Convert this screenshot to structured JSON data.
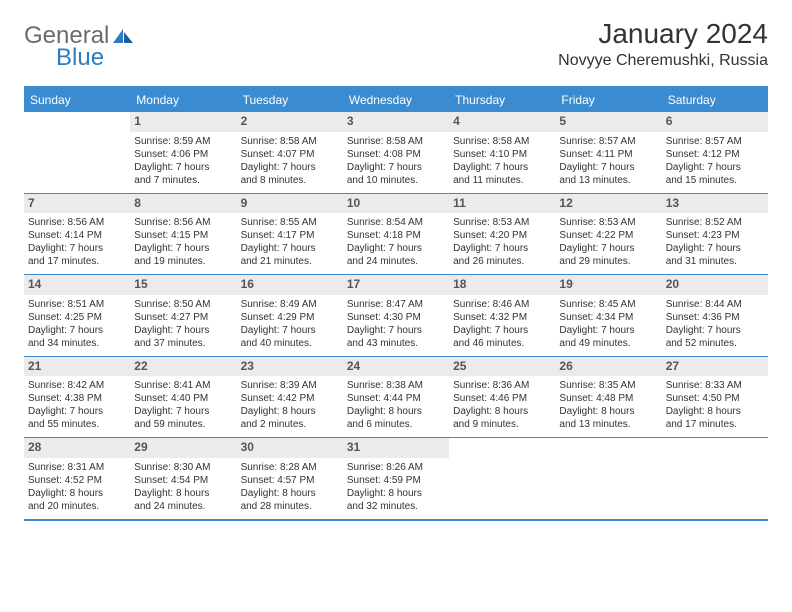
{
  "logo": {
    "general": "General",
    "blue": "Blue"
  },
  "title": "January 2024",
  "subtitle": "Novyye Cheremushki, Russia",
  "colors": {
    "header_bg": "#3b8bd0",
    "header_fg": "#ffffff",
    "daynum_bg": "#ebebeb",
    "rule": "#3b8bd0"
  },
  "dayheads": [
    "Sunday",
    "Monday",
    "Tuesday",
    "Wednesday",
    "Thursday",
    "Friday",
    "Saturday"
  ],
  "weeks": [
    [
      {
        "n": "",
        "sr": "",
        "ss": "",
        "dl1": "",
        "dl2": "",
        "empty": true
      },
      {
        "n": "1",
        "sr": "Sunrise: 8:59 AM",
        "ss": "Sunset: 4:06 PM",
        "dl1": "Daylight: 7 hours",
        "dl2": "and 7 minutes."
      },
      {
        "n": "2",
        "sr": "Sunrise: 8:58 AM",
        "ss": "Sunset: 4:07 PM",
        "dl1": "Daylight: 7 hours",
        "dl2": "and 8 minutes."
      },
      {
        "n": "3",
        "sr": "Sunrise: 8:58 AM",
        "ss": "Sunset: 4:08 PM",
        "dl1": "Daylight: 7 hours",
        "dl2": "and 10 minutes."
      },
      {
        "n": "4",
        "sr": "Sunrise: 8:58 AM",
        "ss": "Sunset: 4:10 PM",
        "dl1": "Daylight: 7 hours",
        "dl2": "and 11 minutes."
      },
      {
        "n": "5",
        "sr": "Sunrise: 8:57 AM",
        "ss": "Sunset: 4:11 PM",
        "dl1": "Daylight: 7 hours",
        "dl2": "and 13 minutes."
      },
      {
        "n": "6",
        "sr": "Sunrise: 8:57 AM",
        "ss": "Sunset: 4:12 PM",
        "dl1": "Daylight: 7 hours",
        "dl2": "and 15 minutes."
      }
    ],
    [
      {
        "n": "7",
        "sr": "Sunrise: 8:56 AM",
        "ss": "Sunset: 4:14 PM",
        "dl1": "Daylight: 7 hours",
        "dl2": "and 17 minutes."
      },
      {
        "n": "8",
        "sr": "Sunrise: 8:56 AM",
        "ss": "Sunset: 4:15 PM",
        "dl1": "Daylight: 7 hours",
        "dl2": "and 19 minutes."
      },
      {
        "n": "9",
        "sr": "Sunrise: 8:55 AM",
        "ss": "Sunset: 4:17 PM",
        "dl1": "Daylight: 7 hours",
        "dl2": "and 21 minutes."
      },
      {
        "n": "10",
        "sr": "Sunrise: 8:54 AM",
        "ss": "Sunset: 4:18 PM",
        "dl1": "Daylight: 7 hours",
        "dl2": "and 24 minutes."
      },
      {
        "n": "11",
        "sr": "Sunrise: 8:53 AM",
        "ss": "Sunset: 4:20 PM",
        "dl1": "Daylight: 7 hours",
        "dl2": "and 26 minutes."
      },
      {
        "n": "12",
        "sr": "Sunrise: 8:53 AM",
        "ss": "Sunset: 4:22 PM",
        "dl1": "Daylight: 7 hours",
        "dl2": "and 29 minutes."
      },
      {
        "n": "13",
        "sr": "Sunrise: 8:52 AM",
        "ss": "Sunset: 4:23 PM",
        "dl1": "Daylight: 7 hours",
        "dl2": "and 31 minutes."
      }
    ],
    [
      {
        "n": "14",
        "sr": "Sunrise: 8:51 AM",
        "ss": "Sunset: 4:25 PM",
        "dl1": "Daylight: 7 hours",
        "dl2": "and 34 minutes."
      },
      {
        "n": "15",
        "sr": "Sunrise: 8:50 AM",
        "ss": "Sunset: 4:27 PM",
        "dl1": "Daylight: 7 hours",
        "dl2": "and 37 minutes."
      },
      {
        "n": "16",
        "sr": "Sunrise: 8:49 AM",
        "ss": "Sunset: 4:29 PM",
        "dl1": "Daylight: 7 hours",
        "dl2": "and 40 minutes."
      },
      {
        "n": "17",
        "sr": "Sunrise: 8:47 AM",
        "ss": "Sunset: 4:30 PM",
        "dl1": "Daylight: 7 hours",
        "dl2": "and 43 minutes."
      },
      {
        "n": "18",
        "sr": "Sunrise: 8:46 AM",
        "ss": "Sunset: 4:32 PM",
        "dl1": "Daylight: 7 hours",
        "dl2": "and 46 minutes."
      },
      {
        "n": "19",
        "sr": "Sunrise: 8:45 AM",
        "ss": "Sunset: 4:34 PM",
        "dl1": "Daylight: 7 hours",
        "dl2": "and 49 minutes."
      },
      {
        "n": "20",
        "sr": "Sunrise: 8:44 AM",
        "ss": "Sunset: 4:36 PM",
        "dl1": "Daylight: 7 hours",
        "dl2": "and 52 minutes."
      }
    ],
    [
      {
        "n": "21",
        "sr": "Sunrise: 8:42 AM",
        "ss": "Sunset: 4:38 PM",
        "dl1": "Daylight: 7 hours",
        "dl2": "and 55 minutes."
      },
      {
        "n": "22",
        "sr": "Sunrise: 8:41 AM",
        "ss": "Sunset: 4:40 PM",
        "dl1": "Daylight: 7 hours",
        "dl2": "and 59 minutes."
      },
      {
        "n": "23",
        "sr": "Sunrise: 8:39 AM",
        "ss": "Sunset: 4:42 PM",
        "dl1": "Daylight: 8 hours",
        "dl2": "and 2 minutes."
      },
      {
        "n": "24",
        "sr": "Sunrise: 8:38 AM",
        "ss": "Sunset: 4:44 PM",
        "dl1": "Daylight: 8 hours",
        "dl2": "and 6 minutes."
      },
      {
        "n": "25",
        "sr": "Sunrise: 8:36 AM",
        "ss": "Sunset: 4:46 PM",
        "dl1": "Daylight: 8 hours",
        "dl2": "and 9 minutes."
      },
      {
        "n": "26",
        "sr": "Sunrise: 8:35 AM",
        "ss": "Sunset: 4:48 PM",
        "dl1": "Daylight: 8 hours",
        "dl2": "and 13 minutes."
      },
      {
        "n": "27",
        "sr": "Sunrise: 8:33 AM",
        "ss": "Sunset: 4:50 PM",
        "dl1": "Daylight: 8 hours",
        "dl2": "and 17 minutes."
      }
    ],
    [
      {
        "n": "28",
        "sr": "Sunrise: 8:31 AM",
        "ss": "Sunset: 4:52 PM",
        "dl1": "Daylight: 8 hours",
        "dl2": "and 20 minutes."
      },
      {
        "n": "29",
        "sr": "Sunrise: 8:30 AM",
        "ss": "Sunset: 4:54 PM",
        "dl1": "Daylight: 8 hours",
        "dl2": "and 24 minutes."
      },
      {
        "n": "30",
        "sr": "Sunrise: 8:28 AM",
        "ss": "Sunset: 4:57 PM",
        "dl1": "Daylight: 8 hours",
        "dl2": "and 28 minutes."
      },
      {
        "n": "31",
        "sr": "Sunrise: 8:26 AM",
        "ss": "Sunset: 4:59 PM",
        "dl1": "Daylight: 8 hours",
        "dl2": "and 32 minutes."
      },
      {
        "n": "",
        "sr": "",
        "ss": "",
        "dl1": "",
        "dl2": "",
        "empty": true
      },
      {
        "n": "",
        "sr": "",
        "ss": "",
        "dl1": "",
        "dl2": "",
        "empty": true
      },
      {
        "n": "",
        "sr": "",
        "ss": "",
        "dl1": "",
        "dl2": "",
        "empty": true
      }
    ]
  ]
}
